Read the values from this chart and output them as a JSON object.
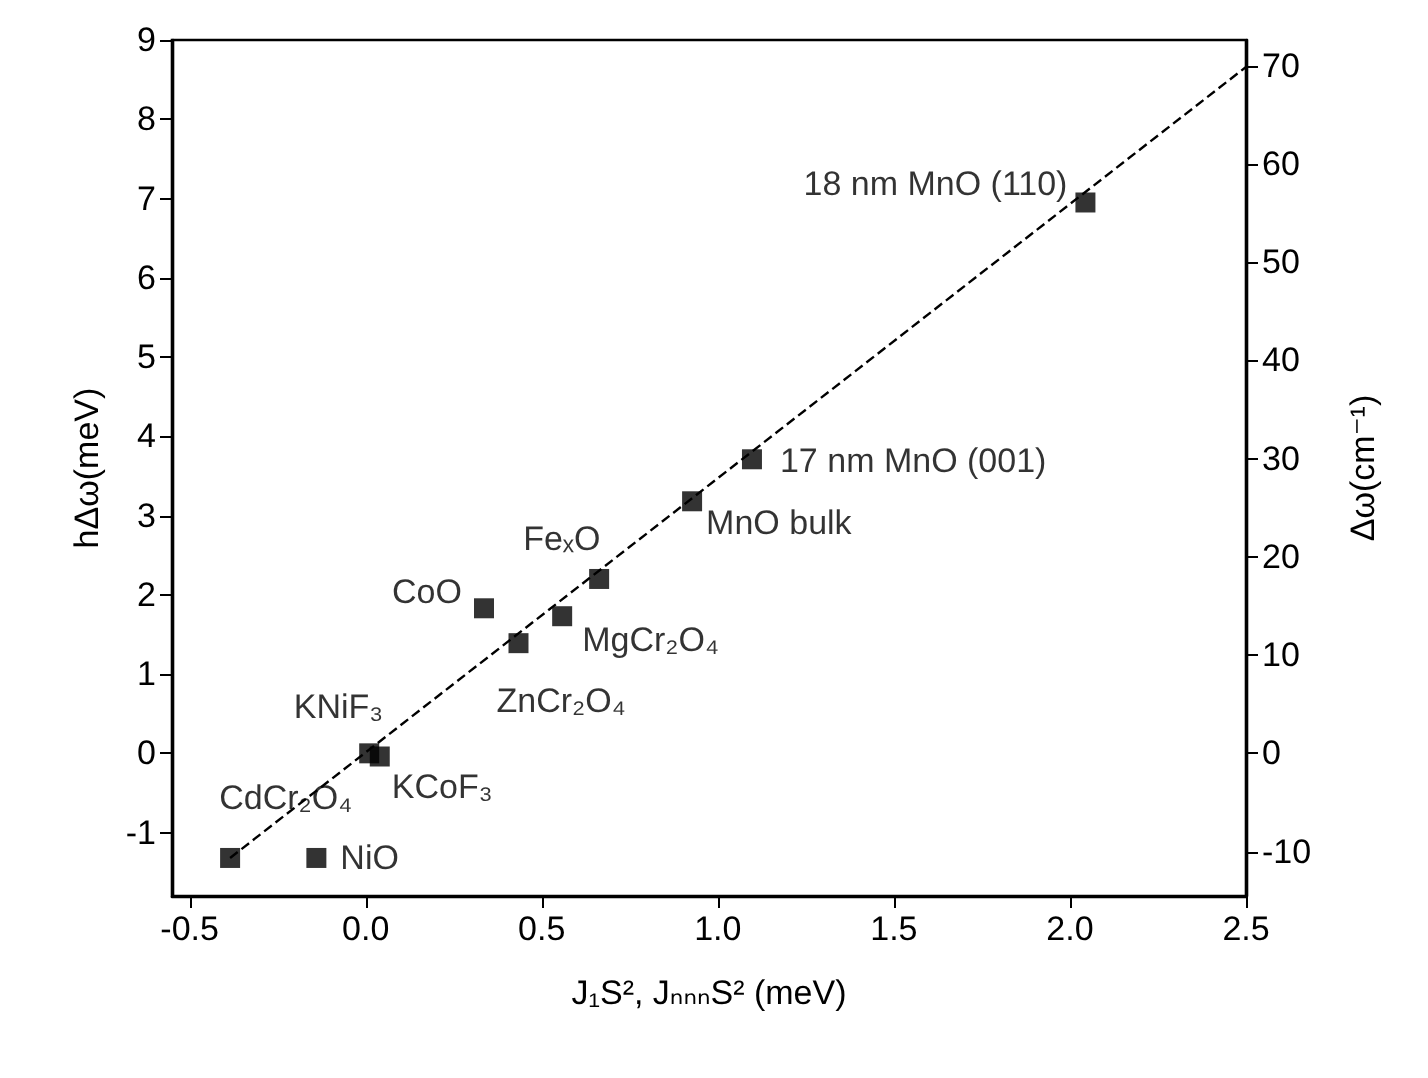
{
  "chart_data": {
    "type": "scatter",
    "xlabel": "J₁S², JₙₙₙS² (meV)",
    "ylabel": "hΔω(meV)",
    "y2label": "Δω(cm⁻¹)",
    "xlim": [
      -0.55,
      2.5
    ],
    "xticks": [
      -0.5,
      {
        "value": 0,
        "label": "0.0"
      },
      0.5,
      {
        "value": 1,
        "label": "1.0"
      },
      1.5,
      {
        "value": 2,
        "label": "2.0"
      },
      2.5
    ],
    "ylim": [
      -1.8,
      9
    ],
    "yticks": [
      -1,
      0,
      1,
      2,
      3,
      4,
      5,
      6,
      7,
      8,
      9
    ],
    "y2lim": [
      -14.5,
      72.6
    ],
    "y2ticks": [
      -10,
      0,
      10,
      20,
      30,
      40,
      50,
      60,
      70
    ],
    "marker": "square",
    "series": [
      {
        "color": "#000000",
        "x": [
          -0.385,
          -0.14,
          0.01,
          0.04,
          0.336,
          0.434,
          0.558,
          0.663,
          0.927,
          1.097,
          2.044
        ],
        "values": [
          -1.32,
          -1.32,
          0.0,
          -0.04,
          1.83,
          1.39,
          1.73,
          2.2,
          3.18,
          3.71,
          6.95
        ]
      },
      {
        "type": "line",
        "color": "#000000",
        "marker": "none",
        "line_style": "dashed",
        "x": [
          -0.385,
          2.5
        ],
        "values": [
          -1.32,
          8.66
        ]
      }
    ],
    "annotations": [
      {
        "text": "CdCr₂O₄",
        "x": -0.385,
        "y": -1.32
      },
      {
        "text": "NiO",
        "x": -0.14,
        "y": -1.32
      },
      {
        "text": "KNiF₃",
        "x": 0.01,
        "y": 0.0
      },
      {
        "text": "KCoF₃",
        "x": 0.04,
        "y": -0.04
      },
      {
        "text": "CoO",
        "x": 0.336,
        "y": 1.83
      },
      {
        "text": "ZnCr₂O₄",
        "x": 0.434,
        "y": 1.39
      },
      {
        "text": "MgCr₂O₄",
        "x": 0.558,
        "y": 1.73
      },
      {
        "text": "FeₓO",
        "x": 0.663,
        "y": 2.2
      },
      {
        "text": "MnO bulk",
        "x": 0.927,
        "y": 3.18
      },
      {
        "text": "17 nm MnO (001)",
        "x": 1.097,
        "y": 3.71
      },
      {
        "text": "18 nm MnO (110)",
        "x": 2.044,
        "y": 6.95
      }
    ]
  }
}
